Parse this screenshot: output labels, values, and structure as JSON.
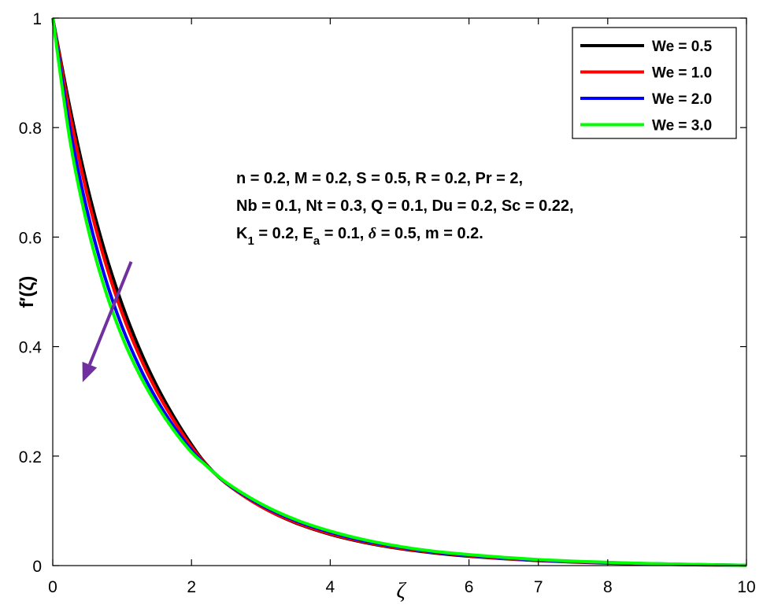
{
  "chart_data": {
    "type": "line",
    "xlabel": "ζ",
    "ylabel": "f′(ζ)",
    "xlim": [
      0,
      10
    ],
    "ylim": [
      0,
      1
    ],
    "x_ticks": [
      "0",
      "2",
      "4",
      "6",
      "7",
      "8",
      "10"
    ],
    "x_tick_values": [
      0,
      2,
      4,
      6,
      7,
      8,
      10
    ],
    "y_ticks": [
      "0",
      "0.2",
      "0.4",
      "0.6",
      "0.8",
      "1"
    ],
    "y_tick_values": [
      0,
      0.2,
      0.4,
      0.6,
      0.8,
      1
    ],
    "grid": false,
    "legend_position": "top-right",
    "x": [
      0,
      0.25,
      0.5,
      0.75,
      1,
      1.25,
      1.5,
      1.75,
      2,
      2.2,
      2.5,
      3,
      3.5,
      4,
      4.5,
      5,
      5.5,
      6,
      6.5,
      7,
      7.5,
      8,
      8.5,
      9,
      9.5,
      10
    ],
    "series": [
      {
        "name": "We = 0.5",
        "color": "#000000",
        "values": [
          1,
          0.835,
          0.692,
          0.574,
          0.477,
          0.396,
          0.328,
          0.271,
          0.221,
          0.187,
          0.15,
          0.108,
          0.078,
          0.057,
          0.042,
          0.031,
          0.023,
          0.017,
          0.0125,
          0.009,
          0.0065,
          0.0045,
          0.003,
          0.002,
          0.001,
          0.0005
        ]
      },
      {
        "name": "We = 1.0",
        "color": "#ff0000",
        "values": [
          1,
          0.822,
          0.675,
          0.557,
          0.461,
          0.383,
          0.318,
          0.264,
          0.217,
          0.186,
          0.15,
          0.108,
          0.079,
          0.058,
          0.043,
          0.032,
          0.024,
          0.018,
          0.013,
          0.0095,
          0.007,
          0.005,
          0.0035,
          0.0022,
          0.0012,
          0.0005
        ]
      },
      {
        "name": "We = 2.0",
        "color": "#0000ff",
        "values": [
          1,
          0.797,
          0.646,
          0.528,
          0.436,
          0.363,
          0.303,
          0.253,
          0.211,
          0.185,
          0.151,
          0.111,
          0.082,
          0.061,
          0.045,
          0.034,
          0.025,
          0.019,
          0.014,
          0.01,
          0.0075,
          0.0055,
          0.0038,
          0.0025,
          0.0014,
          0.0005
        ]
      },
      {
        "name": "We = 3.0",
        "color": "#00ff00",
        "values": [
          1,
          0.775,
          0.62,
          0.506,
          0.418,
          0.349,
          0.293,
          0.246,
          0.207,
          0.184,
          0.152,
          0.113,
          0.084,
          0.063,
          0.047,
          0.035,
          0.026,
          0.02,
          0.015,
          0.011,
          0.008,
          0.006,
          0.004,
          0.0027,
          0.0015,
          0.0005
        ]
      }
    ],
    "annotation_lines": [
      "n = 0.2, M = 0.2, S = 0.5, R = 0.2, Pr = 2,",
      "Nb = 0.1, Nt = 0.3, Q = 0.1, Du = 0.2, Sc = 0.22,"
    ],
    "annotation_line3": {
      "k_base": "K",
      "k_sub": "1",
      "k_rest": " = 0.2, E",
      "e_sub": "a",
      "e_rest": " = 0.1, ",
      "delta": "δ",
      "tail": " = 0.5, m = 0.2."
    },
    "arrow": {
      "color": "#7030a0",
      "from": [
        1.13,
        0.555
      ],
      "to": [
        0.43,
        0.335
      ]
    }
  }
}
